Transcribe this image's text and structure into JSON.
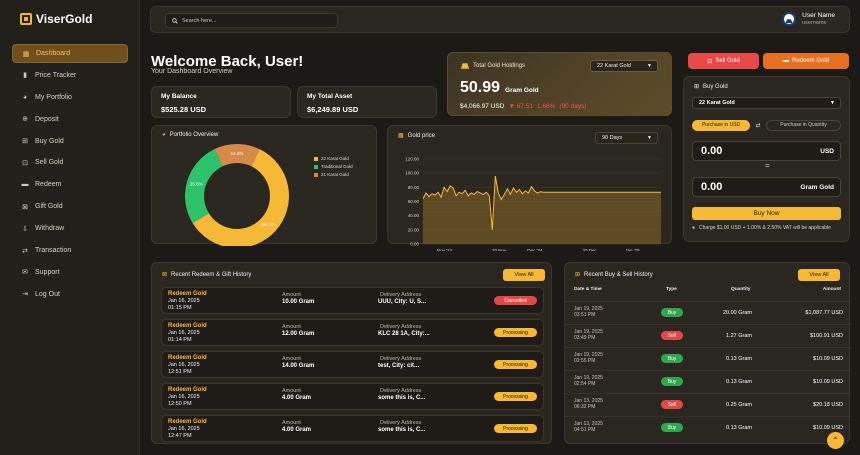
{
  "brand": {
    "name": "ViserGold"
  },
  "sidebar": {
    "items": [
      {
        "label": "Dashboard",
        "icon": "dashboard-icon",
        "glyph": "▦"
      },
      {
        "label": "Price Tracker",
        "icon": "bar-chart-icon",
        "glyph": "▮"
      },
      {
        "label": "My Portfolio",
        "icon": "pie-chart-icon",
        "glyph": "◕"
      },
      {
        "label": "Deposit",
        "icon": "deposit-icon",
        "glyph": "⊕"
      },
      {
        "label": "Buy Gold",
        "icon": "cart-icon",
        "glyph": "⊞"
      },
      {
        "label": "Sell Gold",
        "icon": "sell-icon",
        "glyph": "⊡"
      },
      {
        "label": "Redeem",
        "icon": "truck-icon",
        "glyph": "▬"
      },
      {
        "label": "Gift Gold",
        "icon": "gift-icon",
        "glyph": "⊠"
      },
      {
        "label": "Withdraw",
        "icon": "withdraw-icon",
        "glyph": "⇩"
      },
      {
        "label": "Transaction",
        "icon": "transaction-icon",
        "glyph": "⇄"
      },
      {
        "label": "Support",
        "icon": "support-icon",
        "glyph": "✉"
      },
      {
        "label": "Log Out",
        "icon": "logout-icon",
        "glyph": "⇥"
      }
    ]
  },
  "topbar": {
    "search_placeholder": "Search here...",
    "user_name": "User Name",
    "username": "username"
  },
  "welcome": {
    "title": "Welcome Back, User!",
    "subtitle": "Your Dashboard Overview"
  },
  "stats": {
    "balance_label": "My Balance",
    "balance_value": "$525.28 USD",
    "asset_label": "My Total Asset",
    "asset_value": "$6,249.89 USD"
  },
  "holdings": {
    "title": "Total Gold Holdings",
    "karat": "22 Karat Gold",
    "amount": "50.99",
    "unit": "Gram Gold",
    "usd": "$4,066.97 USD",
    "change": "▼ 67.51",
    "percent": "1.66%",
    "period": "(90 days)"
  },
  "actions": {
    "sell": "Sell Gold",
    "redeem": "Redeem Gold"
  },
  "buy": {
    "title": "Buy Gold",
    "karat": "22 Karat Gold",
    "toggle_a": "Purchase in USD",
    "toggle_b": "Purchase in Quantity",
    "usd_value": "0.00",
    "usd_unit": "USD",
    "eq": "=",
    "gram_value": "0.00",
    "gram_unit": "Gram Gold",
    "button": "Buy Now",
    "charge": "Charge $1.00 USD + 1.00% & 2.50% VAT will be applicable"
  },
  "portfolio": {
    "title": "Portfolio Overview",
    "legend": [
      "22 Karat Gold",
      "Traditional Gold",
      "21 Karat Gold"
    ],
    "slices": [
      {
        "label": "22 Karat Gold",
        "pct": "59.1%",
        "value": 59.1,
        "color": "#f6b936"
      },
      {
        "label": "Traditional Gold",
        "pct": "26.6%",
        "value": 26.6,
        "color": "#2ec26a"
      },
      {
        "label": "21 Karat Gold",
        "pct": "14.3%",
        "value": 14.3,
        "color": "#d68a4a"
      }
    ]
  },
  "chart_data": {
    "type": "line",
    "title": "Gold price",
    "period": "90 Days",
    "ylim": [
      0,
      120
    ],
    "yticks": [
      "120.00",
      "100.00",
      "80.00",
      "60.00",
      "40.00",
      "20.00",
      "0.00"
    ],
    "xticks": [
      "Nov '24",
      "20 Nov",
      "Dec '24",
      "20 Dec",
      "Jan '25"
    ],
    "values": [
      64,
      72,
      67,
      71,
      69,
      73,
      66,
      80,
      74,
      82,
      79,
      68,
      73,
      71,
      76,
      68,
      72,
      70,
      74,
      72,
      70,
      73,
      68,
      20,
      96,
      72,
      63,
      70,
      78,
      70,
      79,
      73,
      77,
      71,
      75,
      72,
      81,
      75,
      72,
      74,
      73,
      73,
      73,
      73,
      73,
      73,
      73,
      73,
      73,
      73,
      73,
      73,
      73,
      73,
      73,
      73,
      73,
      73,
      73,
      73,
      73,
      73,
      73,
      73,
      73,
      73,
      73,
      73,
      73,
      73,
      73,
      73,
      73,
      73,
      73,
      73,
      73,
      73,
      73,
      73
    ]
  },
  "redeem": {
    "title": "Recent Redeem & Gift History",
    "view_all": "View All",
    "amount_label": "Amount",
    "address_label": "Delivery Address",
    "rows": [
      {
        "title": "Redeem Gold",
        "date": "Jan 16, 2025",
        "time": "01:15 PM",
        "amount": "10.00 Gram",
        "address": "UUU, City: U, S...",
        "status": "Cancelled",
        "kind": "cancel"
      },
      {
        "title": "Redeem Gold",
        "date": "Jan 16, 2025",
        "time": "01:14 PM",
        "amount": "12.00 Gram",
        "address": "KLC 28 1A, City:...",
        "status": "Processing",
        "kind": "proc"
      },
      {
        "title": "Redeem Gold",
        "date": "Jan 16, 2025",
        "time": "12:51 PM",
        "amount": "14.00 Gram",
        "address": "test, City: cit...",
        "status": "Processing",
        "kind": "proc"
      },
      {
        "title": "Redeem Gold",
        "date": "Jan 16, 2025",
        "time": "12:50 PM",
        "amount": "4.00 Gram",
        "address": "some this is, C...",
        "status": "Processing",
        "kind": "proc"
      },
      {
        "title": "Redeem Gold",
        "date": "Jan 16, 2025",
        "time": "12:47 PM",
        "amount": "4.00 Gram",
        "address": "some this is, C...",
        "status": "Processing",
        "kind": "proc"
      }
    ]
  },
  "trades": {
    "title": "Recent Buy & Sell History",
    "view_all": "View All",
    "headers": [
      "Date & Time",
      "Type",
      "Quantity",
      "Amount"
    ],
    "rows": [
      {
        "date": "Jan 19, 2025",
        "time": "03:51 PM",
        "type": "Buy",
        "kind": "buy",
        "qty": "20.00 Gram",
        "amount": "$1,087.77 USD"
      },
      {
        "date": "Jan 19, 2025",
        "time": "03:49 PM",
        "type": "Sell",
        "kind": "sell",
        "qty": "1.27 Gram",
        "amount": "$100.91 USD"
      },
      {
        "date": "Jan 19, 2025",
        "time": "02:55 PM",
        "type": "Buy",
        "kind": "buy",
        "qty": "0.13 Gram",
        "amount": "$10.09 USD"
      },
      {
        "date": "Jan 19, 2025",
        "time": "02:54 PM",
        "type": "Buy",
        "kind": "buy",
        "qty": "0.13 Gram",
        "amount": "$10.09 USD"
      },
      {
        "date": "Jan 13, 2025",
        "time": "06:32 PM",
        "type": "Sell",
        "kind": "sell",
        "qty": "0.25 Gram",
        "amount": "$20.18 USD"
      },
      {
        "date": "Jan 13, 2025",
        "time": "04:51 PM",
        "type": "Buy",
        "kind": "buy",
        "qty": "0.13 Gram",
        "amount": "$10.09 USD"
      }
    ]
  },
  "colors": {
    "accent": "#f6b936",
    "sell": "#e84848",
    "redeem": "#e6701f",
    "buy": "#2ea84e"
  }
}
